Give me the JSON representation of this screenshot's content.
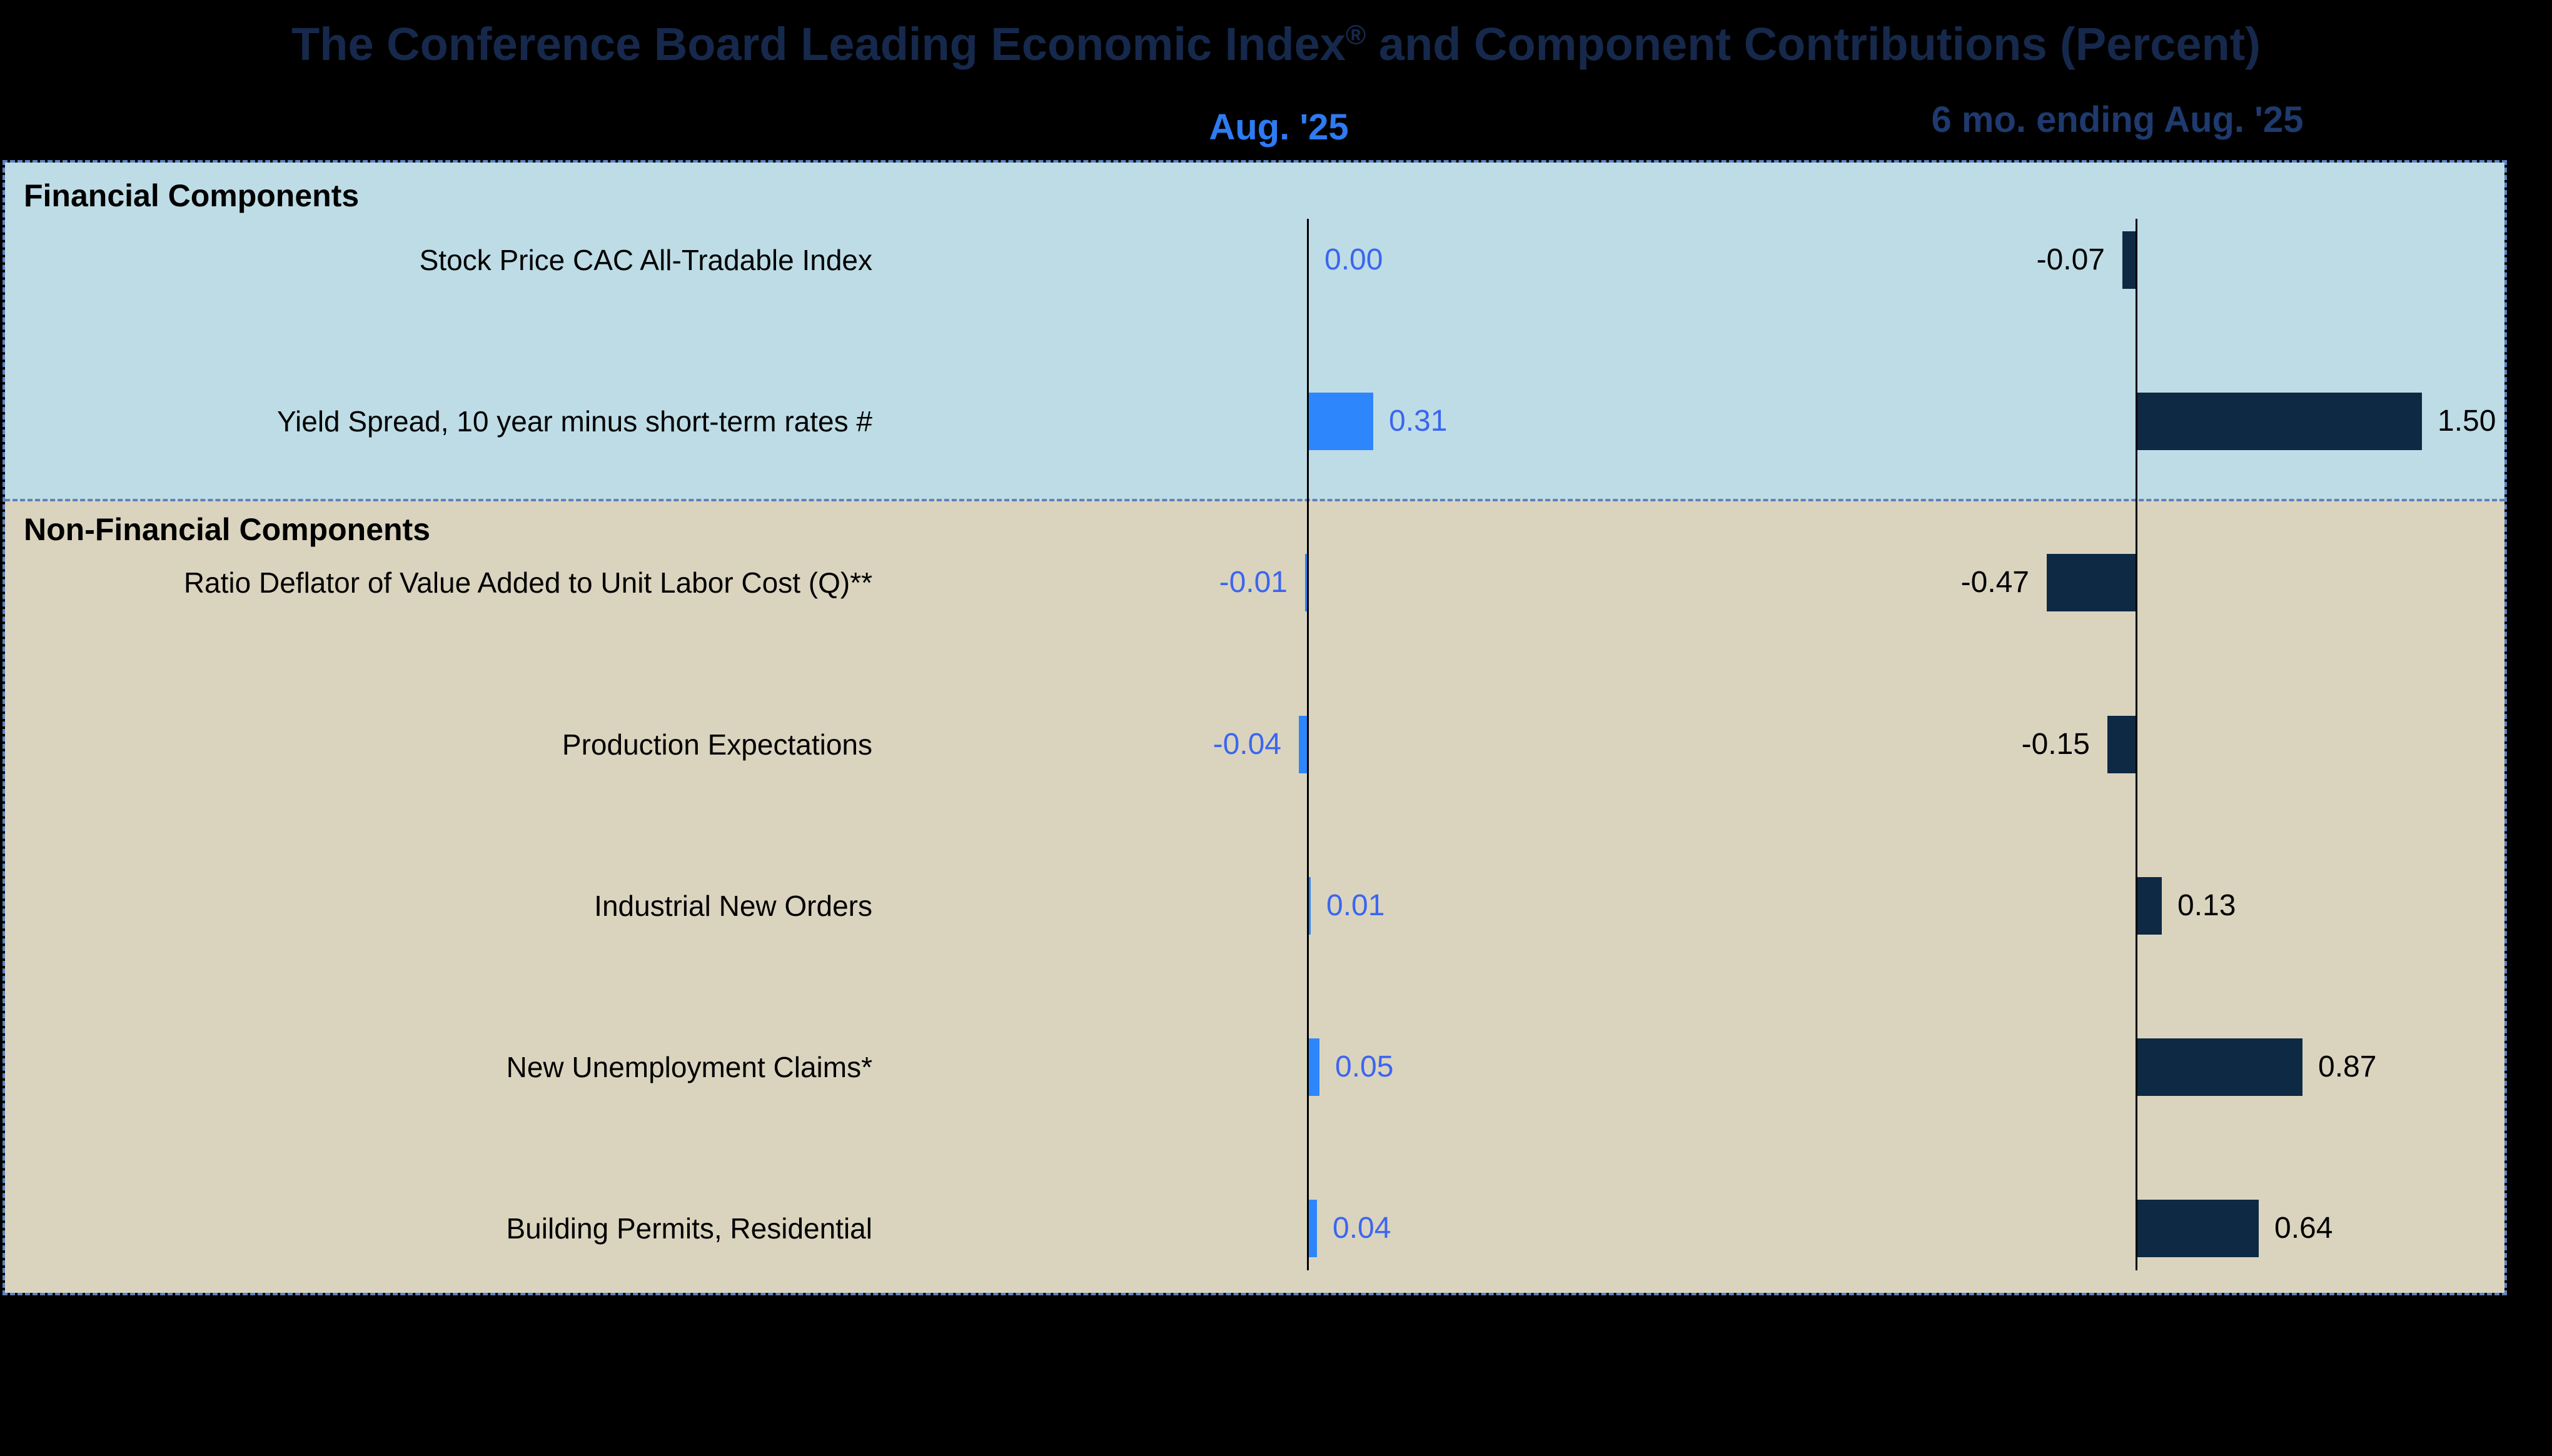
{
  "title": {
    "text_before_reg": "The Conference Board Leading Economic Index",
    "reg_mark": "®",
    "text_after_reg": " and Component Contributions (Percent)"
  },
  "column_headers": {
    "aug": "Aug. '25",
    "six_mo": "6 mo. ending Aug. '25"
  },
  "sections": {
    "financial": "Financial Components",
    "non_financial": "Non-Financial Components"
  },
  "colors": {
    "background": "#000000",
    "title_text": "#16294C",
    "aug_header_text": "#2E7BF2",
    "six_mo_header_text": "#1E3A6E",
    "financial_band_bg": "#BDDCE6",
    "non_financial_band_bg": "#DAD4BF",
    "aug_bar": "#2E86FC",
    "aug_value_text": "#3B66F0",
    "six_mo_bar": "#0E2943",
    "six_mo_value_text": "#000000",
    "row_label_text": "#000000",
    "axis_line": "#000000",
    "dashed_border": "#5E82C0"
  },
  "chart_data": {
    "type": "bar",
    "orientation": "horizontal",
    "title": "The Conference Board Leading Economic Index® and Component Contributions (Percent)",
    "column_headers": [
      "Aug. '25",
      "6 mo. ending Aug. '25"
    ],
    "sections": [
      {
        "label": "Financial Components",
        "row_indices": [
          0,
          1
        ]
      },
      {
        "label": "Non-Financial Components",
        "row_indices": [
          2,
          3,
          4,
          5,
          6
        ]
      }
    ],
    "categories": [
      "Stock Price CAC All-Tradable Index",
      "Yield Spread, 10 year minus short-term rates #",
      "Ratio Deflator of Value Added to Unit Labor Cost (Q)**",
      "Production Expectations",
      "Industrial New Orders",
      "New Unemployment Claims*",
      "Building Permits, Residential"
    ],
    "series": [
      {
        "name": "Aug. '25",
        "values": [
          0.0,
          0.31,
          -0.01,
          -0.04,
          0.01,
          0.05,
          0.04
        ],
        "labels": [
          "0.00",
          "0.31",
          "-0.01",
          "-0.04",
          "0.01",
          "0.05",
          "0.04"
        ]
      },
      {
        "name": "6 mo. ending Aug. '25",
        "values": [
          -0.07,
          1.5,
          -0.47,
          -0.15,
          0.13,
          0.87,
          0.64
        ],
        "labels": [
          "-0.07",
          "1.50",
          "-0.47",
          "-0.15",
          "0.13",
          "0.87",
          "0.64"
        ]
      }
    ],
    "legend_position": "none",
    "grid": false,
    "value_axis_labels_shown": false
  }
}
